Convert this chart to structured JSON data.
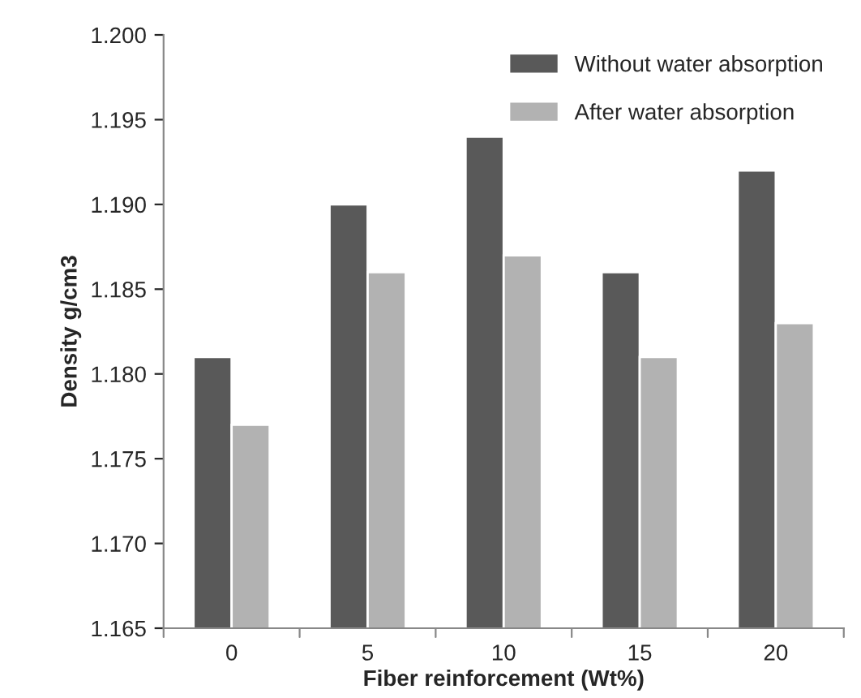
{
  "chart_data": {
    "type": "bar",
    "xlabel": "Fiber reinforcement (Wt%)",
    "ylabel": "Density g/cm3",
    "categories": [
      "0",
      "5",
      "10",
      "15",
      "20"
    ],
    "series": [
      {
        "name": "Without water absorption",
        "color": "#595959",
        "values": [
          1.181,
          1.19,
          1.194,
          1.186,
          1.192
        ]
      },
      {
        "name": "After water absorption",
        "color": "#b2b2b2",
        "values": [
          1.177,
          1.186,
          1.187,
          1.181,
          1.183
        ]
      }
    ],
    "ylim": [
      1.165,
      1.2
    ],
    "yticks": [
      {
        "value": 1.165,
        "label": "1.165"
      },
      {
        "value": 1.17,
        "label": "1.170"
      },
      {
        "value": 1.175,
        "label": "1.175"
      },
      {
        "value": 1.18,
        "label": "1.180"
      },
      {
        "value": 1.185,
        "label": "1.185"
      },
      {
        "value": 1.19,
        "label": "1.190"
      },
      {
        "value": 1.195,
        "label": "1.195"
      },
      {
        "value": 1.2,
        "label": "1.200"
      }
    ],
    "grid": false,
    "legend": "top right"
  }
}
